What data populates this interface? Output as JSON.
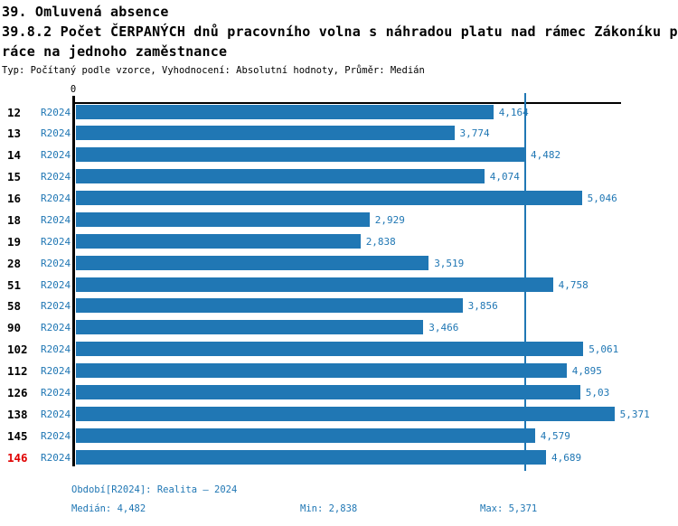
{
  "header": {
    "line1": "39. Omluvená absence",
    "line2": "39.8.2 Počet ČERPANÝCH dnů pracovního volna s náhradou platu nad rámec Zákoníku p",
    "line3": "ráce na jednoho zaměstnance",
    "meta": "Typ: Počítaný podle vzorce, Vyhodnocení: Absolutní hodnoty, Průměr: Medián"
  },
  "chart_data": {
    "type": "bar",
    "orientation": "horizontal",
    "title": "39.8.2 Počet ČERPANÝCH dnů pracovního volna s náhradou platu nad rámec Zákoníku práce na jednoho zaměstnance",
    "series_name": "R2024",
    "axis_zero_label": "0",
    "xlim": [
      0,
      5.47
    ],
    "grid": false,
    "legend_position": "none",
    "categories": [
      "12",
      "13",
      "14",
      "15",
      "16",
      "18",
      "19",
      "28",
      "51",
      "58",
      "90",
      "102",
      "112",
      "126",
      "138",
      "145",
      "146"
    ],
    "values": [
      4.164,
      3.774,
      4.482,
      4.074,
      5.046,
      2.929,
      2.838,
      3.519,
      4.758,
      3.856,
      3.466,
      5.061,
      4.895,
      5.03,
      5.371,
      4.579,
      4.689
    ],
    "value_labels": [
      "4,164",
      "3,774",
      "4,482",
      "4,074",
      "5,046",
      "2,929",
      "2,838",
      "3,519",
      "4,758",
      "3,856",
      "3,466",
      "5,061",
      "4,895",
      "5,03",
      "5,371",
      "4,579",
      "4,689"
    ],
    "highlighted_category": "146",
    "median_reference_value": 4.482,
    "colors": {
      "bar": "#2077b4",
      "series_label": "#2077b4",
      "value_label": "#2077b4",
      "median_line": "#2077b4",
      "category_label": "#000000",
      "highlighted_category_label": "#e00000",
      "axis": "#000000"
    }
  },
  "footer": {
    "period": "Období[R2024]: Realita – 2024",
    "median": "Medián: 4,482",
    "min": "Min: 2,838",
    "max": "Max: 5,371"
  }
}
